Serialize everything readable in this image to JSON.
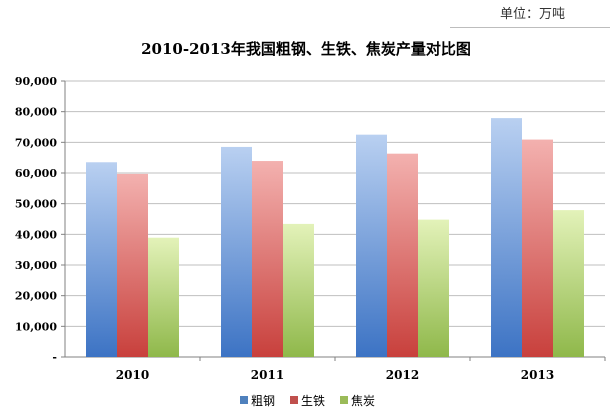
{
  "unit_label": "单位：万吨",
  "chart_data": {
    "type": "bar",
    "title": "2010-2013年我国粗钢、生铁、焦炭产量对比图",
    "xlabel": "",
    "ylabel": "",
    "categories": [
      "2010",
      "2011",
      "2012",
      "2013"
    ],
    "series": [
      {
        "name": "粗钢",
        "values": [
          63500,
          68500,
          72500,
          77900
        ],
        "color": "#4f81bd"
      },
      {
        "name": "生铁",
        "values": [
          59700,
          63900,
          66300,
          70900
        ],
        "color": "#c0504d"
      },
      {
        "name": "焦炭",
        "values": [
          38900,
          43400,
          44800,
          47900
        ],
        "color": "#9bbb59"
      }
    ],
    "ylim": [
      0,
      90000
    ],
    "y_ticks": [
      {
        "value": 0,
        "label": "-"
      },
      {
        "value": 10000,
        "label": "10,000"
      },
      {
        "value": 20000,
        "label": "20,000"
      },
      {
        "value": 30000,
        "label": "30,000"
      },
      {
        "value": 40000,
        "label": "40,000"
      },
      {
        "value": 50000,
        "label": "50,000"
      },
      {
        "value": 60000,
        "label": "60,000"
      },
      {
        "value": 70000,
        "label": "70,000"
      },
      {
        "value": 80000,
        "label": "80,000"
      },
      {
        "value": 90000,
        "label": "90,000"
      }
    ],
    "grid": true,
    "legend_position": "bottom-right"
  }
}
